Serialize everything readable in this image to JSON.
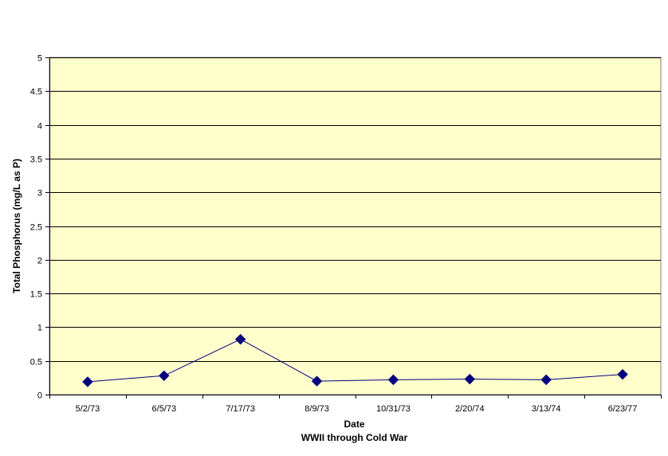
{
  "chart_data": {
    "type": "line",
    "title": "",
    "xlabel": "Date",
    "xlabel_sub": "WWII through Cold War",
    "ylabel": "Total Phosphorus (mg/L as P)",
    "ylim": [
      0,
      5
    ],
    "y_ticks": [
      0,
      0.5,
      1,
      1.5,
      2,
      2.5,
      3,
      3.5,
      4,
      4.5,
      5
    ],
    "y_tick_labels": [
      "0",
      "0.5",
      "1",
      "1.5",
      "2",
      "2.5",
      "3",
      "3.5",
      "4",
      "4.5",
      "5"
    ],
    "categories": [
      "5/2/73",
      "6/5/73",
      "7/17/73",
      "8/9/73",
      "10/31/73",
      "2/20/74",
      "3/13/74",
      "6/23/77"
    ],
    "series": [
      {
        "values": [
          0.19,
          0.28,
          0.82,
          0.2,
          0.22,
          0.23,
          0.22,
          0.3
        ],
        "color": "#00007f",
        "marker": "diamond"
      }
    ],
    "grid": true,
    "legend": "none",
    "plot_background": "#ffffcc",
    "gridline_color": "#000000"
  }
}
